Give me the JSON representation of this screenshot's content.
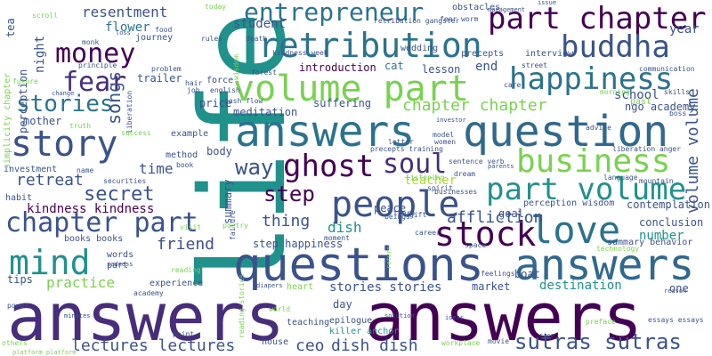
{
  "palette": {
    "background": "#ffffff",
    "dark_purple": "#440154",
    "indigo": "#472d7b",
    "blue": "#3b528b",
    "steel_blue": "#2c728e",
    "teal": "#21918c",
    "green_teal": "#28ae80",
    "green": "#5ec962",
    "lime": "#addc30",
    "yellow": "#fde725"
  },
  "words": [
    {
      "text": "life",
      "color": "#21918c"
    },
    {
      "text": "answers",
      "color": "#472d7b"
    },
    {
      "text": "answers",
      "color": "#440154"
    },
    {
      "text": "questions",
      "color": "#3b528b"
    },
    {
      "text": "answers",
      "color": "#31688e"
    },
    {
      "text": "answers",
      "color": "#2c728e"
    },
    {
      "text": "question",
      "color": "#31688e"
    },
    {
      "text": "retribution",
      "color": "#2c728e"
    },
    {
      "text": "volume part",
      "color": "#7ad151"
    },
    {
      "text": "part chapter",
      "color": "#440154"
    },
    {
      "text": "people",
      "color": "#3b528b"
    },
    {
      "text": "story",
      "color": "#3b528b"
    },
    {
      "text": "business",
      "color": "#7ad151"
    },
    {
      "text": "happiness",
      "color": "#2c728e"
    },
    {
      "text": "part volume",
      "color": "#21918c"
    },
    {
      "text": "stock",
      "color": "#440154"
    },
    {
      "text": "love",
      "color": "#2c728e"
    },
    {
      "text": "mind",
      "color": "#21918c"
    },
    {
      "text": "buddha",
      "color": "#3b528b"
    },
    {
      "text": "chapter part",
      "color": "#3b528b"
    },
    {
      "text": "ghost",
      "color": "#440154"
    },
    {
      "text": "soul",
      "color": "#472d7b"
    },
    {
      "text": "money",
      "color": "#440154"
    },
    {
      "text": "entrepreneur",
      "color": "#2c728e"
    },
    {
      "text": "fear",
      "color": "#472d7b"
    },
    {
      "text": "stories",
      "color": "#2c728e"
    },
    {
      "text": "way",
      "color": "#3b528b"
    },
    {
      "text": "step",
      "color": "#440154"
    },
    {
      "text": "secret",
      "color": "#3b528b"
    },
    {
      "text": "chapter chapter",
      "color": "#7ad151"
    },
    {
      "text": "volume volume",
      "color": "#3b528b"
    },
    {
      "text": "sutras sutras",
      "color": "#3b528b"
    },
    {
      "text": "songs",
      "color": "#3b528b"
    },
    {
      "text": "retreat",
      "color": "#3b528b"
    },
    {
      "text": "kindness kindness",
      "color": "#440154"
    },
    {
      "text": "friend",
      "color": "#3b528b"
    },
    {
      "text": "thing",
      "color": "#3b528b"
    },
    {
      "text": "dish",
      "color": "#21918c"
    },
    {
      "text": "teacher",
      "color": "#addc30"
    },
    {
      "text": "affliction",
      "color": "#3b528b"
    },
    {
      "text": "number",
      "color": "#21918c"
    },
    {
      "text": "lectures lectures",
      "color": "#3b528b"
    },
    {
      "text": "ceo",
      "color": "#3b528b"
    },
    {
      "text": "dish dish",
      "color": "#3b528b"
    },
    {
      "text": "time",
      "color": "#3b528b"
    },
    {
      "text": "practice",
      "color": "#7ad151"
    },
    {
      "text": "resentment",
      "color": "#3b528b"
    },
    {
      "text": "flower",
      "color": "#2c728e"
    },
    {
      "text": "student",
      "color": "#3b528b"
    },
    {
      "text": "year",
      "color": "#3b528b"
    },
    {
      "text": "suffering",
      "color": "#3b528b"
    },
    {
      "text": "meditation",
      "color": "#3b528b"
    },
    {
      "text": "introduction",
      "color": "#440154"
    },
    {
      "text": "cat",
      "color": "#2c728e"
    },
    {
      "text": "lesson",
      "color": "#3b528b"
    },
    {
      "text": "end",
      "color": "#3b528b"
    },
    {
      "text": "school",
      "color": "#3b528b"
    },
    {
      "text": "ngo academy",
      "color": "#3b528b"
    },
    {
      "text": "perception wisdom",
      "color": "#3b528b"
    },
    {
      "text": "contemplation",
      "color": "#3b528b"
    },
    {
      "text": "conclusion",
      "color": "#3b528b"
    },
    {
      "text": "summary behavior",
      "color": "#3b528b"
    },
    {
      "text": "step happiness",
      "color": "#3b528b"
    },
    {
      "text": "stories stories",
      "color": "#3b528b"
    },
    {
      "text": "destination",
      "color": "#21918c"
    },
    {
      "text": "peace",
      "color": "#3b528b"
    },
    {
      "text": "goal",
      "color": "#3b528b"
    },
    {
      "text": "boat",
      "color": "#3b528b"
    },
    {
      "text": "market",
      "color": "#3b528b"
    },
    {
      "text": "one",
      "color": "#3b528b"
    },
    {
      "text": "mother",
      "color": "#3b528b"
    },
    {
      "text": "perception",
      "color": "#3b528b"
    },
    {
      "text": "night",
      "color": "#3b528b"
    },
    {
      "text": "tea",
      "color": "#3b528b"
    },
    {
      "text": "journey",
      "color": "#3b528b"
    },
    {
      "text": "force",
      "color": "#3b528b"
    },
    {
      "text": "trailer",
      "color": "#3b528b"
    },
    {
      "text": "price",
      "color": "#3b528b"
    },
    {
      "text": "method",
      "color": "#3b528b"
    },
    {
      "text": "example",
      "color": "#3b528b"
    },
    {
      "text": "body",
      "color": "#3b528b"
    },
    {
      "text": "summary",
      "color": "#3b528b"
    },
    {
      "text": "experience",
      "color": "#3b528b"
    },
    {
      "text": "heart",
      "color": "#7ad151"
    },
    {
      "text": "day",
      "color": "#3b528b"
    },
    {
      "text": "epilogue",
      "color": "#3b528b"
    },
    {
      "text": "killer anchor",
      "color": "#21918c"
    },
    {
      "text": "teaching",
      "color": "#3b528b"
    },
    {
      "text": "house",
      "color": "#3b528b"
    },
    {
      "text": "point",
      "color": "#3b528b"
    },
    {
      "text": "words",
      "color": "#3b528b"
    },
    {
      "text": "part",
      "color": "#3b528b"
    },
    {
      "text": "tips",
      "color": "#3b528b"
    },
    {
      "text": "investment",
      "color": "#3b528b"
    },
    {
      "text": "habit",
      "color": "#3b528b"
    },
    {
      "text": "books books",
      "color": "#3b528b"
    },
    {
      "text": "simplicity chapter",
      "color": "#7ad151"
    },
    {
      "text": "cash flow",
      "color": "#3b528b"
    },
    {
      "text": "english",
      "color": "#3b528b"
    },
    {
      "text": "job",
      "color": "#3b528b"
    },
    {
      "text": "success",
      "color": "#7ad151"
    },
    {
      "text": "liberation",
      "color": "#3b528b"
    },
    {
      "text": "kindness week",
      "color": "#3b528b"
    },
    {
      "text": "retribution gangster",
      "color": "#3b528b"
    },
    {
      "text": "wedding",
      "color": "#3b528b"
    },
    {
      "text": "precepts",
      "color": "#3b528b"
    },
    {
      "text": "interview",
      "color": "#3b528b"
    },
    {
      "text": "obstacles",
      "color": "#3b528b"
    },
    {
      "text": "fear worm",
      "color": "#3b528b"
    },
    {
      "text": "street",
      "color": "#3b528b"
    },
    {
      "text": "care",
      "color": "#3b528b"
    },
    {
      "text": "skills",
      "color": "#3b528b"
    },
    {
      "text": "morning",
      "color": "#7ad151"
    },
    {
      "text": "past",
      "color": "#7ad151"
    },
    {
      "text": "boss",
      "color": "#3b528b"
    },
    {
      "text": "sentence verb",
      "color": "#3b528b"
    },
    {
      "text": "dream",
      "color": "#3b528b"
    },
    {
      "text": "spirit",
      "color": "#3b528b"
    },
    {
      "text": "businesses",
      "color": "#3b528b"
    },
    {
      "text": "model",
      "color": "#3b528b"
    },
    {
      "text": "women",
      "color": "#3b528b"
    },
    {
      "text": "feelings",
      "color": "#3b528b"
    },
    {
      "text": "workplace",
      "color": "#7ad151"
    },
    {
      "text": "movie",
      "color": "#3b528b"
    },
    {
      "text": "preface",
      "color": "#7ad151"
    },
    {
      "text": "essays essays",
      "color": "#3b528b"
    },
    {
      "text": "world",
      "color": "#7ad151"
    },
    {
      "text": "power",
      "color": "#3b528b"
    },
    {
      "text": "others",
      "color": "#7ad151"
    },
    {
      "text": "food",
      "color": "#3b528b"
    },
    {
      "text": "today",
      "color": "#7ad151"
    },
    {
      "text": "monk",
      "color": "#3b528b"
    },
    {
      "text": "gift",
      "color": "#3b528b"
    },
    {
      "text": "thera",
      "color": "#3b528b"
    },
    {
      "text": "beings",
      "color": "#3b528b"
    },
    {
      "text": "visit",
      "color": "#7ad151"
    },
    {
      "text": "failure",
      "color": "#3b528b"
    },
    {
      "text": "poetry",
      "color": "#7ad151"
    },
    {
      "text": "reading",
      "color": "#7ad151"
    },
    {
      "text": "book",
      "color": "#3b528b"
    },
    {
      "text": "name",
      "color": "#3b528b"
    },
    {
      "text": "securities",
      "color": "#3b528b"
    },
    {
      "text": "future",
      "color": "#7ad151"
    },
    {
      "text": "moment",
      "color": "#3b528b"
    },
    {
      "text": "space",
      "color": "#3b528b"
    },
    {
      "text": "career",
      "color": "#3b528b"
    },
    {
      "text": "listening",
      "color": "#7ad151"
    },
    {
      "text": "precepts training",
      "color": "#3b528b"
    },
    {
      "text": "letter",
      "color": "#3b528b"
    },
    {
      "text": "liberation anger",
      "color": "#3b528b"
    },
    {
      "text": "reading stories",
      "color": "#7ad151"
    },
    {
      "text": "truth",
      "color": "#7ad151"
    },
    {
      "text": "wisdom",
      "color": "#7ad151"
    },
    {
      "text": "principle",
      "color": "#3b528b"
    },
    {
      "text": "problem",
      "color": "#3b528b"
    },
    {
      "text": "rules",
      "color": "#3b528b"
    },
    {
      "text": "hair",
      "color": "#3b528b"
    },
    {
      "text": "forest",
      "color": "#3b528b"
    },
    {
      "text": "death",
      "color": "#3b528b"
    },
    {
      "text": "advice",
      "color": "#3b528b"
    },
    {
      "text": "communication",
      "color": "#3b528b"
    },
    {
      "text": "language",
      "color": "#3b528b"
    },
    {
      "text": "mountain",
      "color": "#3b528b"
    },
    {
      "text": "technology",
      "color": "#7ad151"
    },
    {
      "text": "sadness",
      "color": "#3b528b"
    },
    {
      "text": "academy",
      "color": "#3b528b"
    },
    {
      "text": "platform platform",
      "color": "#7ad151"
    },
    {
      "text": "diapers",
      "color": "#3b528b"
    },
    {
      "text": "minutes",
      "color": "#3b528b"
    },
    {
      "text": "solution",
      "color": "#3b528b"
    },
    {
      "text": "ideas",
      "color": "#3b528b"
    },
    {
      "text": "rice",
      "color": "#3b528b"
    },
    {
      "text": "return",
      "color": "#7ad151"
    },
    {
      "text": "reason",
      "color": "#3b528b"
    },
    {
      "text": "parents",
      "color": "#3b528b"
    },
    {
      "text": "investor",
      "color": "#3b528b"
    },
    {
      "text": "change",
      "color": "#3b528b"
    },
    {
      "text": "loss",
      "color": "#3b528b"
    },
    {
      "text": "management",
      "color": "#3b528b"
    },
    {
      "text": "issue",
      "color": "#3b528b"
    },
    {
      "text": "scroll",
      "color": "#7ad151"
    }
  ]
}
